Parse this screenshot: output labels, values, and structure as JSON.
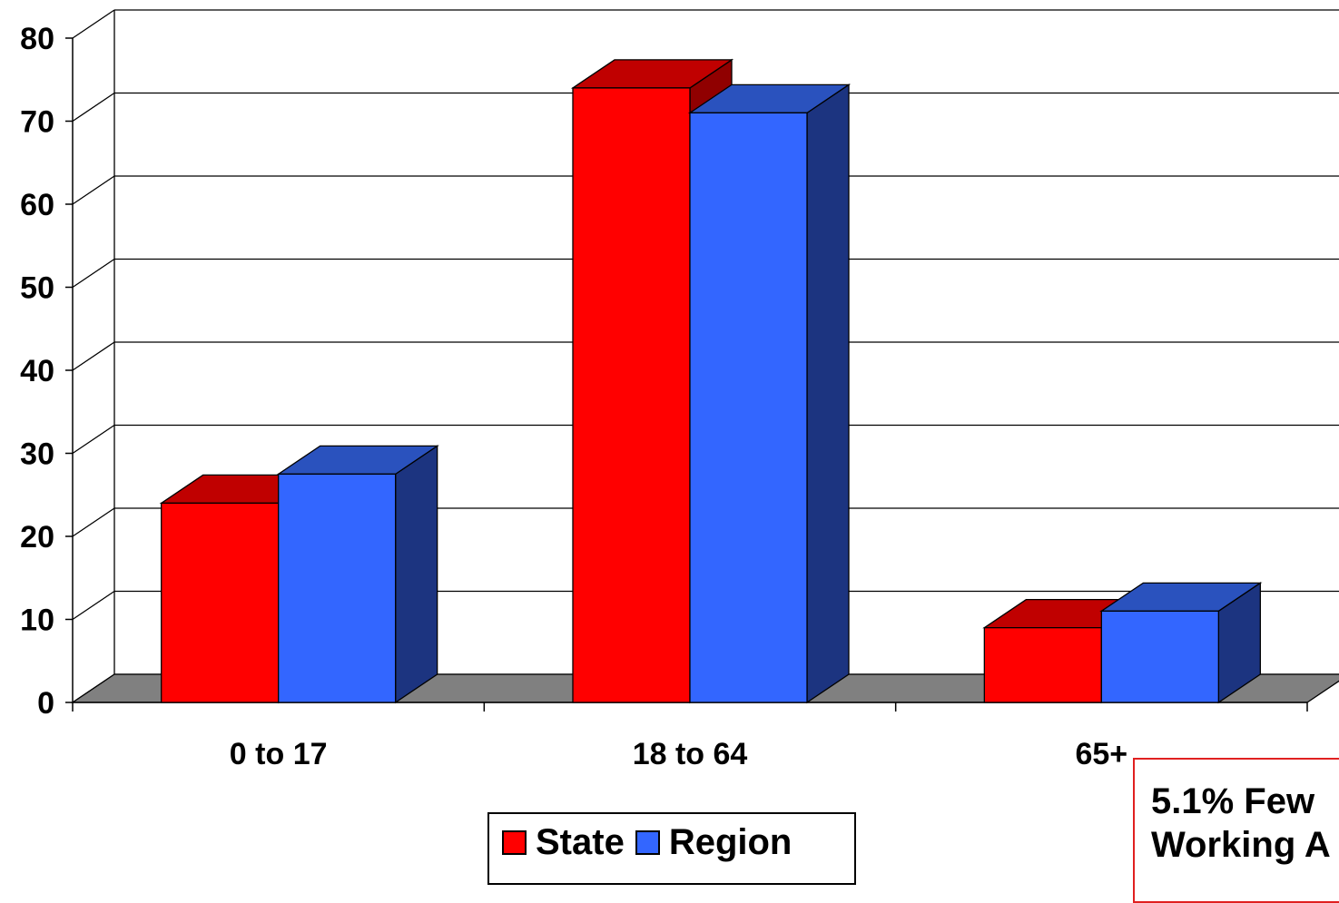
{
  "chart_data": {
    "type": "bar",
    "style": "3d-clustered",
    "title": "",
    "xlabel": "",
    "ylabel": "",
    "categories": [
      "0 to 17",
      "18 to 64",
      "65+"
    ],
    "series": [
      {
        "name": "State",
        "values": [
          24,
          74,
          9
        ],
        "color": "#ff0000"
      },
      {
        "name": "Region",
        "values": [
          27.5,
          71,
          11
        ],
        "color": "#3366ff"
      }
    ],
    "ylim": [
      0,
      80
    ],
    "yticks": [
      "0",
      "10",
      "20",
      "30",
      "40",
      "50",
      "60",
      "70",
      "80"
    ],
    "grid": true,
    "legend_position": "bottom-center",
    "annotation": {
      "lines": [
        "5.1% Few",
        "Working A"
      ]
    }
  },
  "colors": {
    "floor": "#808080",
    "state_top": "#c00000",
    "state_side": "#900000",
    "region_top": "#2a52be",
    "region_side": "#1c3480"
  }
}
